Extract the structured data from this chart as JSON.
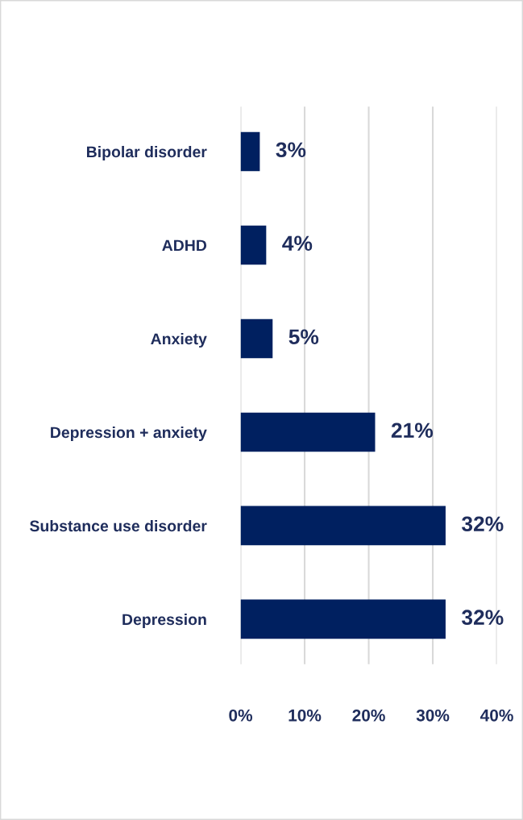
{
  "chart_data": {
    "type": "bar",
    "orientation": "horizontal",
    "categories": [
      "Bipolar disorder",
      "ADHD",
      "Anxiety",
      "Depression + anxiety",
      "Substance use disorder",
      "Depression"
    ],
    "values": [
      3,
      4,
      5,
      21,
      32,
      32
    ],
    "value_labels": [
      "3%",
      "4%",
      "5%",
      "21%",
      "32%",
      "32%"
    ],
    "color": "#002060",
    "xlim": [
      0,
      40
    ],
    "xticks": [
      {
        "value": 0,
        "label": "0%"
      },
      {
        "value": 10,
        "label": "10%"
      },
      {
        "value": 20,
        "label": "20%"
      },
      {
        "value": 30,
        "label": "30%"
      },
      {
        "value": 40,
        "label": "40%"
      }
    ],
    "grid": "x"
  }
}
